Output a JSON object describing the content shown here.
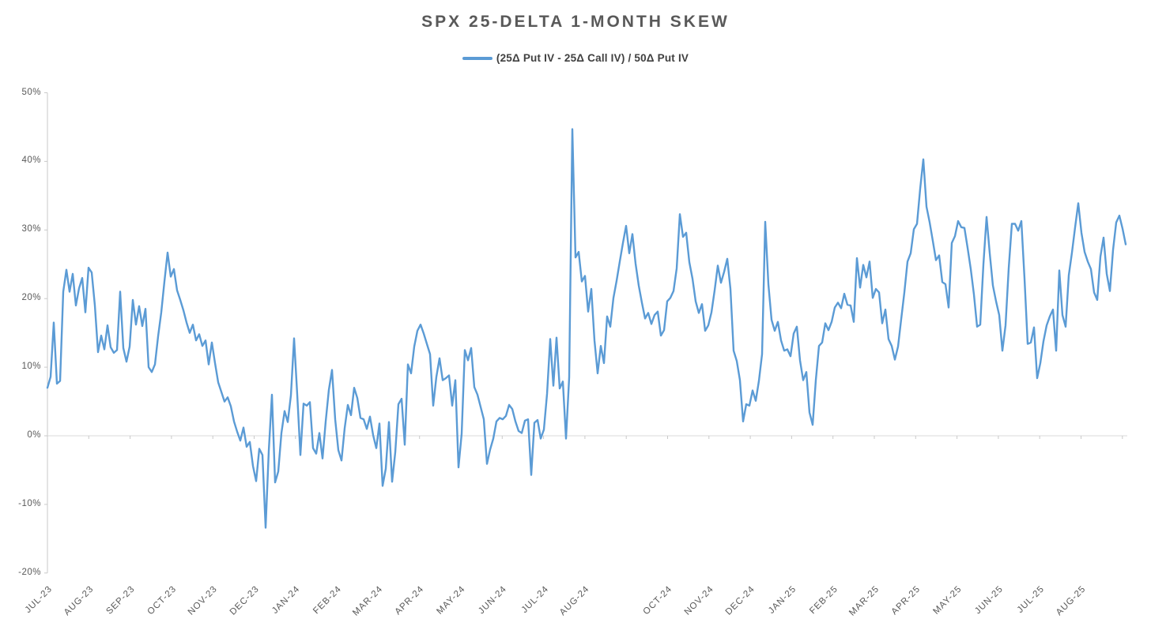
{
  "chart": {
    "colors": {
      "series": "#5B9BD5",
      "axis": "#C9C9C9",
      "zero_gridline": "#D9D9D9",
      "text": "#595959",
      "legend_text": "#404040"
    }
  },
  "chart_data": {
    "type": "line",
    "title": "SPX 25-DELTA 1-MONTH SKEW",
    "legend_label": "(25Δ Put IV - 25Δ Call IV) / 50Δ Put IV",
    "unit": "%",
    "y_axis": {
      "min": -20,
      "max": 50,
      "step": 10,
      "format": "percent",
      "tick_labels": [
        "50%",
        "40%",
        "30%",
        "20%",
        "10%",
        "0%",
        "-10%",
        "-20%"
      ]
    },
    "x_axis": {
      "tick_labels": [
        "JUL-23",
        "AUG-23",
        "SEP-23",
        "OCT-23",
        "NOV-23",
        "DEC-23",
        "JAN-24",
        "FEB-24",
        "MAR-24",
        "APR-24",
        "MAY-24",
        "JUN-24",
        "JUL-24",
        "AUG-24",
        "",
        "OCT-24",
        "NOV-24",
        "DEC-24",
        "JAN-25",
        "FEB-25",
        "MAR-25",
        "APR-25",
        "MAY-25",
        "JUN-25",
        "JUL-25",
        "AUG-25"
      ]
    },
    "grid": "zero-line-only",
    "legend_position": "top-center",
    "values": [
      7.0,
      8.6,
      16.5,
      7.6,
      8.0,
      21.0,
      24.2,
      21.0,
      23.6,
      19.0,
      21.5,
      23.0,
      18.0,
      24.5,
      23.8,
      19.0,
      12.2,
      14.6,
      12.6,
      16.1,
      12.9,
      12.1,
      12.5,
      21.0,
      12.8,
      10.8,
      13.0,
      19.8,
      16.2,
      18.9,
      16.0,
      18.5,
      10.0,
      9.3,
      10.4,
      14.5,
      18.0,
      22.5,
      26.7,
      23.2,
      24.3,
      21.2,
      19.8,
      18.3,
      16.5,
      15.0,
      16.2,
      13.9,
      14.8,
      13.1,
      13.9,
      10.4,
      13.6,
      10.6,
      7.8,
      6.4,
      5.0,
      5.6,
      4.3,
      2.1,
      0.6,
      -0.7,
      1.2,
      -1.6,
      -0.9,
      -4.4,
      -6.6,
      -1.9,
      -2.8,
      -13.4,
      -2.2,
      6.0,
      -6.8,
      -5.2,
      0.4,
      3.6,
      2.0,
      5.9,
      14.2,
      6.0,
      -2.8,
      4.7,
      4.4,
      4.9,
      -1.8,
      -2.6,
      0.4,
      -3.3,
      2.1,
      6.7,
      9.6,
      2.4,
      -2.1,
      -3.6,
      1.1,
      4.5,
      3.0,
      7.0,
      5.5,
      2.6,
      2.4,
      1.0,
      2.8,
      0.1,
      -1.8,
      1.8,
      -7.3,
      -4.8,
      2.0,
      -6.7,
      -2.4,
      4.6,
      5.4,
      -1.3,
      10.4,
      9.1,
      13.0,
      15.3,
      16.2,
      14.9,
      13.4,
      11.9,
      4.4,
      8.6,
      11.3,
      8.1,
      8.4,
      8.8,
      4.4,
      8.1,
      -4.6,
      0.3,
      12.5,
      11.0,
      12.8,
      7.1,
      6.0,
      4.2,
      2.4,
      -4.1,
      -2.0,
      -0.4,
      2.1,
      2.6,
      2.4,
      2.9,
      4.5,
      3.9,
      2.1,
      0.7,
      0.4,
      2.2,
      2.4,
      -5.7,
      1.9,
      2.3,
      -0.4,
      0.9,
      6.1,
      14.1,
      7.3,
      14.3,
      6.9,
      7.9,
      -0.4,
      8.5,
      44.7,
      26.0,
      26.8,
      22.5,
      23.3,
      18.1,
      21.4,
      13.9,
      9.1,
      13.1,
      10.6,
      17.4,
      15.9,
      20.1,
      22.6,
      25.4,
      28.1,
      30.6,
      26.6,
      29.4,
      25.1,
      21.9,
      19.4,
      17.1,
      17.9,
      16.3,
      17.6,
      18.1,
      14.6,
      15.4,
      19.6,
      20.1,
      21.1,
      24.4,
      32.3,
      29.0,
      29.6,
      25.3,
      22.9,
      19.6,
      17.9,
      19.2,
      15.3,
      16.1,
      18.0,
      21.2,
      24.8,
      22.3,
      23.9,
      25.8,
      21.4,
      12.4,
      10.9,
      8.1,
      2.1,
      4.6,
      4.4,
      6.6,
      5.1,
      8.0,
      11.9,
      31.2,
      22.1,
      16.9,
      15.3,
      16.6,
      13.9,
      12.4,
      12.6,
      11.6,
      14.9,
      15.9,
      11.0,
      8.1,
      9.3,
      3.4,
      1.6,
      8.1,
      13.1,
      13.6,
      16.4,
      15.4,
      16.6,
      18.7,
      19.4,
      18.6,
      20.7,
      19.1,
      19.0,
      16.6,
      25.9,
      21.6,
      24.9,
      23.1,
      25.4,
      20.1,
      21.4,
      20.9,
      16.4,
      18.4,
      14.1,
      13.1,
      11.1,
      13.0,
      17.0,
      20.9,
      25.4,
      26.6,
      30.1,
      30.9,
      36.0,
      40.3,
      33.4,
      31.1,
      28.4,
      25.6,
      26.3,
      22.4,
      22.1,
      18.7,
      28.1,
      29.1,
      31.3,
      30.4,
      30.3,
      27.4,
      24.3,
      20.6,
      15.9,
      16.2,
      25.0,
      31.9,
      26.6,
      21.9,
      19.6,
      17.6,
      12.4,
      16.1,
      24.4,
      30.9,
      30.9,
      29.9,
      31.3,
      22.9,
      13.4,
      13.6,
      15.8,
      8.4,
      10.6,
      13.8,
      16.1,
      17.4,
      18.4,
      12.4,
      24.1,
      17.6,
      15.9,
      23.4,
      26.7,
      30.4,
      33.9,
      29.6,
      26.8,
      25.4,
      24.3,
      20.9,
      19.8,
      26.1,
      28.9,
      23.6,
      21.1,
      27.1,
      31.1,
      32.1,
      30.2,
      27.9
    ]
  }
}
